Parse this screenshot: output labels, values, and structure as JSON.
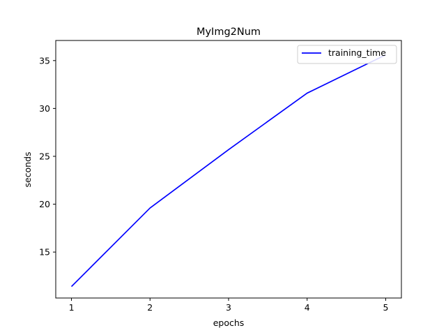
{
  "chart_data": {
    "type": "line",
    "title": "MyImg2Num",
    "xlabel": "epochs",
    "ylabel": "seconds",
    "x": [
      1,
      2,
      3,
      4,
      5
    ],
    "xticks": [
      1,
      2,
      3,
      4,
      5
    ],
    "yticks": [
      15,
      20,
      25,
      30,
      35
    ],
    "xlim": [
      0.8,
      5.2
    ],
    "ylim": [
      10.2,
      37.1
    ],
    "grid": false,
    "legend_position": "top-right",
    "series": [
      {
        "name": "training_time",
        "color": "#0000ff",
        "values": [
          11.4,
          19.6,
          25.7,
          31.6,
          35.6
        ]
      }
    ]
  }
}
